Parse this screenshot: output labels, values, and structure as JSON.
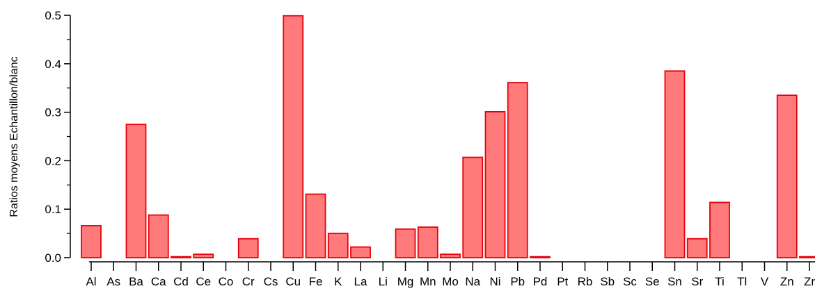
{
  "chart_data": {
    "type": "bar",
    "ylabel": "Ratios moyens Echantillon/blanc",
    "ylim": [
      0,
      0.5
    ],
    "yticks": [
      "0.0",
      "0.1",
      "0.2",
      "0.3",
      "0.4",
      "0.5"
    ],
    "grid": false,
    "categories": [
      "Al",
      "As",
      "Ba",
      "Ca",
      "Cd",
      "Ce",
      "Co",
      "Cr",
      "Cs",
      "Cu",
      "Fe",
      "K",
      "La",
      "Li",
      "Mg",
      "Mn",
      "Mo",
      "Na",
      "Ni",
      "Pb",
      "Pd",
      "Pt",
      "Rb",
      "Sb",
      "Sc",
      "Se",
      "Sn",
      "Sr",
      "Ti",
      "Tl",
      "V",
      "Zn",
      "Zr"
    ],
    "values": [
      0.066,
      0,
      0.275,
      0.088,
      0.002,
      0.007,
      0,
      0.039,
      0,
      0.499,
      0.131,
      0.05,
      0.022,
      0,
      0.059,
      0.063,
      0.007,
      0.207,
      0.301,
      0.361,
      0.002,
      0,
      0,
      0,
      0,
      0,
      0.385,
      0.039,
      0.114,
      0,
      0,
      0.335,
      0.002
    ],
    "colors": {
      "bar_fill": "#ff7b7b",
      "bar_stroke": "#e8000b",
      "axis": "#000000"
    }
  }
}
